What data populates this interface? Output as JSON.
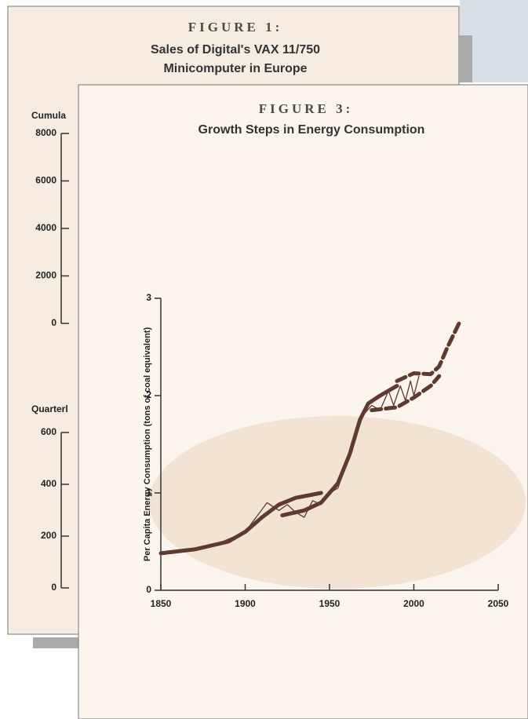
{
  "chart_data": [
    {
      "type": "line",
      "title": "FIGURE 1:",
      "subtitle": [
        "Sales of Digital's VAX 11/750",
        "Minicomputer in Europe"
      ],
      "panels": [
        {
          "ylabel": "Cumula",
          "ylim": [
            0,
            8000
          ],
          "yticks": [
            0,
            2000,
            4000,
            6000,
            8000
          ]
        },
        {
          "ylabel": "Quarterl",
          "ylim": [
            0,
            600
          ],
          "yticks": [
            0,
            200,
            400,
            600
          ]
        }
      ]
    },
    {
      "type": "line",
      "title": "FIGURE 3:",
      "subtitle": "Growth Steps in Energy Consumption",
      "ylabel": "Per Capita Energy Consumption (tons of coal equivalent)",
      "xlim": [
        1850,
        2050
      ],
      "xticks": [
        1850,
        1900,
        1950,
        2000,
        2050
      ],
      "ylim": [
        0,
        3
      ],
      "yticks": [
        0,
        1,
        2,
        3
      ],
      "series": [
        {
          "color": "#5e3a30",
          "line_style": "solid",
          "x": [
            1850,
            1870,
            1890,
            1900,
            1910,
            1920,
            1930,
            1945
          ],
          "values": [
            0.38,
            0.42,
            0.5,
            0.6,
            0.75,
            0.88,
            0.95,
            1.0
          ]
        },
        {
          "color": "#5e3a30",
          "line_style": "solid",
          "x": [
            1922,
            1935,
            1945,
            1955,
            1962,
            1968,
            1973,
            1980,
            1990
          ],
          "values": [
            0.77,
            0.82,
            0.9,
            1.1,
            1.4,
            1.75,
            1.92,
            2.0,
            2.1
          ]
        },
        {
          "color": "#5e3a30",
          "line_style": "dashed",
          "x": [
            1990,
            2000,
            2010,
            2015,
            2020,
            2027
          ],
          "values": [
            2.15,
            2.23,
            2.22,
            2.3,
            2.5,
            2.75
          ]
        },
        {
          "color": "#5e3a30",
          "line_style": "dashed",
          "x": [
            1975,
            1990,
            2000,
            2010,
            2015
          ],
          "values": [
            1.85,
            1.88,
            1.98,
            2.1,
            2.2
          ]
        },
        {
          "color": "#5e3a30",
          "line_style": "thin",
          "x": [
            1850,
            1880,
            1900,
            1913,
            1920,
            1925,
            1930,
            1935,
            1940,
            1945,
            1950,
            1955,
            1960,
            1970,
            1975,
            1980,
            1985,
            1988,
            1992,
            1995,
            1998,
            2000,
            2003
          ],
          "values": [
            0.38,
            0.45,
            0.6,
            0.9,
            0.82,
            0.88,
            0.8,
            0.75,
            0.92,
            0.88,
            1.0,
            1.05,
            1.3,
            1.8,
            1.9,
            1.85,
            2.05,
            1.9,
            2.1,
            1.95,
            2.15,
            2.0,
            2.2
          ]
        }
      ]
    }
  ]
}
